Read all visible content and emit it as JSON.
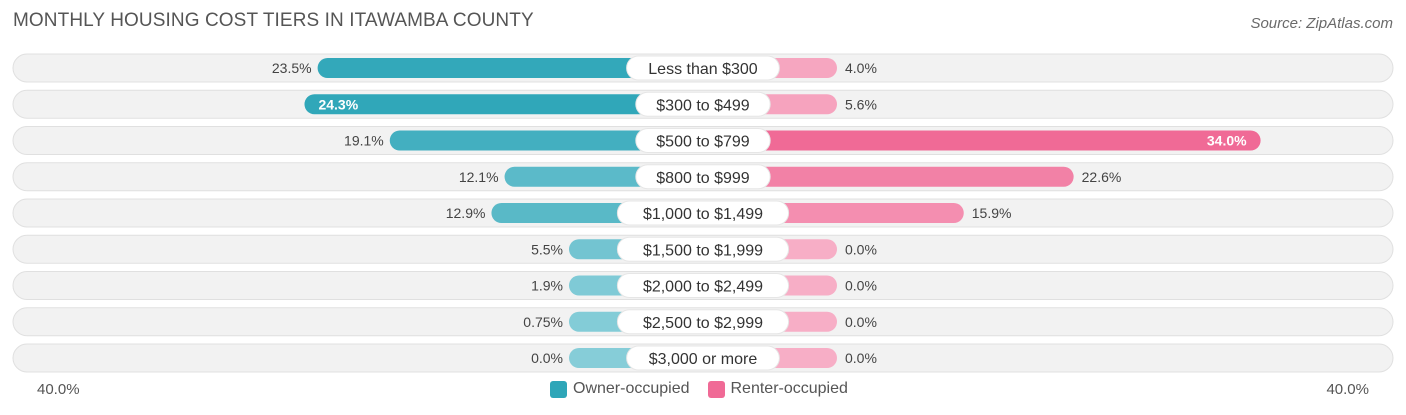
{
  "title": "MONTHLY HOUSING COST TIERS IN ITAWAMBA COUNTY",
  "source": "Source: ZipAtlas.com",
  "axis": {
    "left_label": "40.0%",
    "right_label": "40.0%"
  },
  "legend": {
    "owner": {
      "label": "Owner-occupied",
      "color": "#2ea6b8"
    },
    "renter": {
      "label": "Renter-occupied",
      "color": "#f06a96"
    }
  },
  "chart_data": {
    "type": "bar",
    "orientation": "horizontal-diverging",
    "title": "MONTHLY HOUSING COST TIERS IN ITAWAMBA COUNTY",
    "categories": [
      "Less than $300",
      "$300 to $499",
      "$500 to $799",
      "$800 to $999",
      "$1,000 to $1,499",
      "$1,500 to $1,999",
      "$2,000 to $2,499",
      "$2,500 to $2,999",
      "$3,000 or more"
    ],
    "series": [
      {
        "name": "Owner-occupied",
        "values": [
          23.5,
          24.3,
          19.1,
          12.1,
          12.9,
          5.5,
          1.9,
          0.75,
          0.0
        ],
        "labels": [
          "23.5%",
          "24.3%",
          "19.1%",
          "12.1%",
          "12.9%",
          "5.5%",
          "1.9%",
          "0.75%",
          "0.0%"
        ]
      },
      {
        "name": "Renter-occupied",
        "values": [
          4.0,
          5.6,
          34.0,
          22.6,
          15.9,
          0.0,
          0.0,
          0.0,
          0.0
        ],
        "labels": [
          "4.0%",
          "5.6%",
          "34.0%",
          "22.6%",
          "15.9%",
          "0.0%",
          "0.0%",
          "0.0%",
          "0.0%"
        ]
      }
    ],
    "xlim": [
      -40,
      40
    ],
    "legend_position": "bottom-center"
  }
}
